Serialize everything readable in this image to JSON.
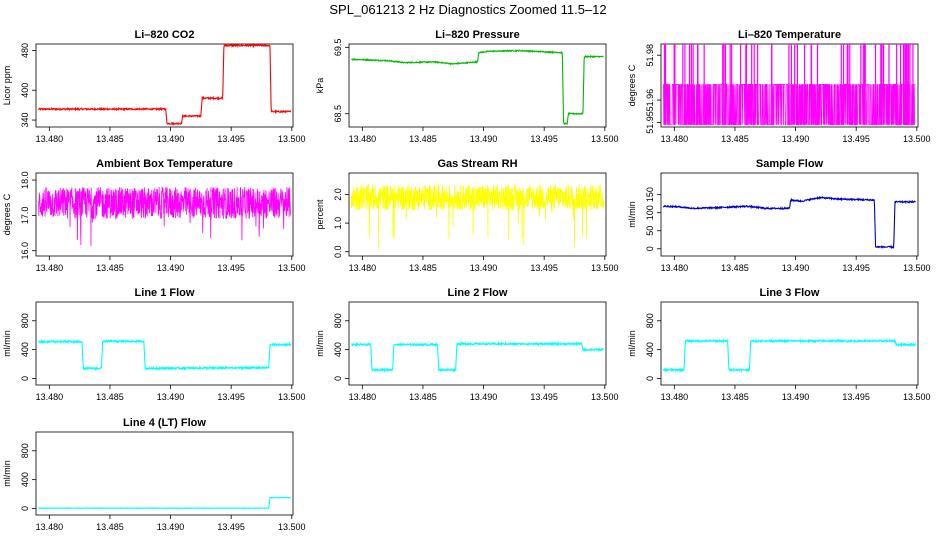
{
  "title": "SPL_061213  2 Hz Diagnostics Zoomed 11.5–12",
  "chart_data": [
    {
      "type": "line",
      "title": "Li–820 CO2",
      "ylabel": "Licor ppm",
      "color": "#ff0000",
      "xlim": [
        13.4789,
        13.5001
      ],
      "ylim": [
        326,
        493
      ],
      "xticks": [
        13.48,
        13.485,
        13.49,
        13.495,
        13.5
      ],
      "xtick_labels": [
        "13.480",
        "13.485",
        "13.490",
        "13.495",
        "13.500"
      ],
      "yticks": [
        340,
        400,
        480
      ],
      "ytick_labels": [
        "340",
        "400",
        "480"
      ],
      "noise": 1.5,
      "series": [
        {
          "x": [
            13.4791,
            13.4896,
            13.4897,
            13.4909,
            13.491,
            13.4925,
            13.4926,
            13.4943,
            13.4944,
            13.4982,
            13.4983,
            13.4999
          ],
          "y": [
            362,
            362,
            333,
            333,
            348,
            348,
            384,
            384,
            490,
            490,
            357,
            357
          ]
        }
      ]
    },
    {
      "type": "line",
      "title": "Li–820 Pressure",
      "ylabel": "kPa",
      "color": "#00bb00",
      "xlim": [
        13.4789,
        13.5001
      ],
      "ylim": [
        68.3,
        69.55
      ],
      "xticks": [
        13.48,
        13.485,
        13.49,
        13.495,
        13.5
      ],
      "xtick_labels": [
        "13.480",
        "13.485",
        "13.490",
        "13.495",
        "13.500"
      ],
      "yticks": [
        68.5,
        69.5
      ],
      "ytick_labels": [
        "68.5",
        "69.5"
      ],
      "noise": 0.008,
      "series": [
        {
          "x": [
            13.4791,
            13.482,
            13.4835,
            13.486,
            13.4875,
            13.4895,
            13.4896,
            13.4905,
            13.493,
            13.4965,
            13.4966,
            13.4969,
            13.497,
            13.4982,
            13.4983,
            13.4999
          ],
          "y": [
            69.32,
            69.3,
            69.27,
            69.28,
            69.25,
            69.28,
            69.42,
            69.44,
            69.45,
            69.42,
            68.35,
            68.35,
            68.5,
            68.5,
            69.36,
            69.36
          ]
        }
      ]
    },
    {
      "type": "line",
      "title": "Li–820 Temperature",
      "ylabel": "degrees C",
      "color": "#ff00ff",
      "xlim": [
        13.4789,
        13.5001
      ],
      "ylim": [
        51.948,
        51.985
      ],
      "xticks": [
        13.48,
        13.485,
        13.49,
        13.495,
        13.5
      ],
      "xtick_labels": [
        "13.480",
        "13.485",
        "13.490",
        "13.495",
        "13.500"
      ],
      "yticks": [
        51.95,
        51.96,
        51.98
      ],
      "ytick_labels": [
        "51.95",
        "51.96",
        "51.98"
      ],
      "pattern": "levels",
      "levels": [
        51.949,
        51.967
      ],
      "spikes": 51.985,
      "series": [
        {
          "x": [
            13.4791,
            13.4999
          ],
          "y": [
            51.95,
            51.967
          ]
        }
      ]
    },
    {
      "type": "line",
      "title": "Ambient Box Temperature",
      "ylabel": "degrees C",
      "color": "#ff00ff",
      "xlim": [
        13.4789,
        13.5001
      ],
      "ylim": [
        15.85,
        18.2
      ],
      "xticks": [
        13.48,
        13.485,
        13.49,
        13.495,
        13.5
      ],
      "xtick_labels": [
        "13.480",
        "13.485",
        "13.490",
        "13.495",
        "13.500"
      ],
      "yticks": [
        16.0,
        17.0,
        18.0
      ],
      "ytick_labels": [
        "16.0",
        "17.0",
        "18.0"
      ],
      "pattern": "noise",
      "center": 17.35,
      "amplitude": 0.45,
      "series": [
        {
          "x": [
            13.4791,
            13.4999
          ],
          "y": [
            16.0,
            18.1
          ]
        }
      ]
    },
    {
      "type": "line",
      "title": "Gas Stream RH",
      "ylabel": "percent",
      "color": "#ffff00",
      "xlim": [
        13.4789,
        13.5001
      ],
      "ylim": [
        -0.15,
        2.75
      ],
      "xticks": [
        13.48,
        13.485,
        13.49,
        13.495,
        13.5
      ],
      "xtick_labels": [
        "13.480",
        "13.485",
        "13.490",
        "13.495",
        "13.500"
      ],
      "yticks": [
        0.0,
        1.0,
        2.0
      ],
      "ytick_labels": [
        "0.0",
        "1.0",
        "2.0"
      ],
      "pattern": "noise",
      "center": 1.9,
      "amplitude": 0.45,
      "series": [
        {
          "x": [
            13.4791,
            13.4999
          ],
          "y": [
            0.0,
            2.6
          ]
        }
      ]
    },
    {
      "type": "line",
      "title": "Sample Flow",
      "ylabel": "ml/min",
      "color": "#0000cc",
      "xlim": [
        13.4789,
        13.5001
      ],
      "ylim": [
        -20,
        210
      ],
      "xticks": [
        13.48,
        13.485,
        13.49,
        13.495,
        13.5
      ],
      "xtick_labels": [
        "13.480",
        "13.485",
        "13.490",
        "13.495",
        "13.500"
      ],
      "yticks": [
        0,
        50,
        100,
        150
      ],
      "ytick_labels": [
        "0",
        "50",
        "100",
        "150"
      ],
      "noise": 2,
      "series": [
        {
          "x": [
            13.4791,
            13.4805,
            13.4815,
            13.4835,
            13.486,
            13.4875,
            13.4895,
            13.4896,
            13.4905,
            13.492,
            13.4935,
            13.4965,
            13.4966,
            13.4981,
            13.4982,
            13.4999
          ],
          "y": [
            118,
            116,
            112,
            114,
            118,
            112,
            112,
            135,
            132,
            142,
            138,
            135,
            5,
            5,
            130,
            130
          ]
        }
      ]
    },
    {
      "type": "line",
      "title": "Line 1 Flow",
      "ylabel": "ml/min",
      "color": "#00ffff",
      "xlim": [
        13.4789,
        13.5001
      ],
      "ylim": [
        -90,
        1060
      ],
      "xticks": [
        13.48,
        13.485,
        13.49,
        13.495,
        13.5
      ],
      "xtick_labels": [
        "13.480",
        "13.485",
        "13.490",
        "13.495",
        "13.500"
      ],
      "yticks": [
        0,
        400,
        800
      ],
      "ytick_labels": [
        "0",
        "400",
        "800"
      ],
      "noise": 12,
      "series": [
        {
          "x": [
            13.4791,
            13.4827,
            13.4828,
            13.4843,
            13.4844,
            13.4878,
            13.4879,
            13.4981,
            13.4982,
            13.4999
          ],
          "y": [
            510,
            510,
            140,
            140,
            515,
            515,
            140,
            150,
            470,
            470
          ]
        }
      ]
    },
    {
      "type": "line",
      "title": "Line 2 Flow",
      "ylabel": "ml/min",
      "color": "#00ffff",
      "xlim": [
        13.4789,
        13.5001
      ],
      "ylim": [
        -90,
        1060
      ],
      "xticks": [
        13.48,
        13.485,
        13.49,
        13.495,
        13.5
      ],
      "xtick_labels": [
        "13.480",
        "13.485",
        "13.490",
        "13.495",
        "13.500"
      ],
      "yticks": [
        0,
        400,
        800
      ],
      "ytick_labels": [
        "0",
        "400",
        "800"
      ],
      "noise": 12,
      "series": [
        {
          "x": [
            13.4791,
            13.4807,
            13.4808,
            13.4825,
            13.4826,
            13.4862,
            13.4863,
            13.4877,
            13.4878,
            13.4981,
            13.4982,
            13.4999
          ],
          "y": [
            470,
            470,
            120,
            120,
            470,
            470,
            120,
            120,
            480,
            480,
            400,
            400
          ]
        }
      ]
    },
    {
      "type": "line",
      "title": "Line 3 Flow",
      "ylabel": "ml/min",
      "color": "#00ffff",
      "xlim": [
        13.4789,
        13.5001
      ],
      "ylim": [
        -90,
        1060
      ],
      "xticks": [
        13.48,
        13.485,
        13.49,
        13.495,
        13.5
      ],
      "xtick_labels": [
        "13.480",
        "13.485",
        "13.490",
        "13.495",
        "13.500"
      ],
      "yticks": [
        0,
        400,
        800
      ],
      "ytick_labels": [
        "0",
        "400",
        "800"
      ],
      "noise": 12,
      "series": [
        {
          "x": [
            13.4791,
            13.4808,
            13.4809,
            13.4844,
            13.4845,
            13.4862,
            13.4863,
            13.4982,
            13.4983,
            13.4999
          ],
          "y": [
            120,
            120,
            520,
            520,
            120,
            120,
            520,
            520,
            470,
            470
          ]
        }
      ]
    },
    {
      "type": "line",
      "title": "Line 4 (LT) Flow",
      "ylabel": "ml/min",
      "color": "#00ffff",
      "xlim": [
        13.4789,
        13.5001
      ],
      "ylim": [
        -90,
        1060
      ],
      "xticks": [
        13.48,
        13.485,
        13.49,
        13.495,
        13.5
      ],
      "xtick_labels": [
        "13.480",
        "13.485",
        "13.490",
        "13.495",
        "13.500"
      ],
      "yticks": [
        0,
        400,
        800
      ],
      "ytick_labels": [
        "0",
        "400",
        "800"
      ],
      "noise": 3,
      "series": [
        {
          "x": [
            13.4791,
            13.4981,
            13.4982,
            13.4999
          ],
          "y": [
            5,
            5,
            150,
            150
          ]
        }
      ]
    }
  ]
}
